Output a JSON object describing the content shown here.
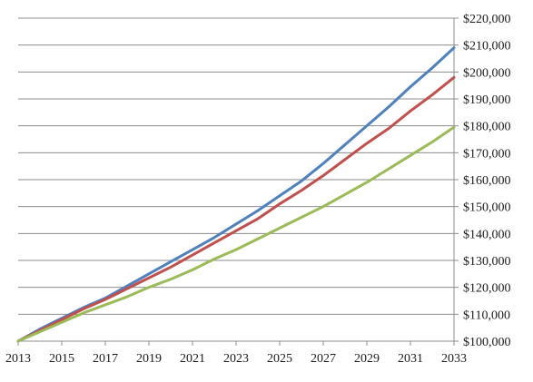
{
  "chart_data": {
    "type": "line",
    "title": "",
    "xlabel": "",
    "ylabel": "",
    "x": [
      2013,
      2014,
      2015,
      2016,
      2017,
      2018,
      2019,
      2020,
      2021,
      2022,
      2023,
      2024,
      2025,
      2026,
      2027,
      2028,
      2029,
      2030,
      2031,
      2032,
      2033
    ],
    "x_ticks": [
      "2013",
      "2015",
      "2017",
      "2019",
      "2021",
      "2023",
      "2025",
      "2027",
      "2029",
      "2031",
      "2033"
    ],
    "xlim": [
      2013,
      2033
    ],
    "ylim": [
      100000,
      220000
    ],
    "y_ticks": [
      "$100,000",
      "$110,000",
      "$120,000",
      "$130,000",
      "$140,000",
      "$150,000",
      "$160,000",
      "$170,000",
      "$180,000",
      "$190,000",
      "$200,000",
      "$210,000",
      "$220,000"
    ],
    "grid": true,
    "y_axis_position": "right",
    "legend": "none",
    "series": [
      {
        "color": "#4f81bd",
        "values": [
          100000,
          104500,
          108500,
          112500,
          116000,
          120500,
          125000,
          129500,
          134000,
          138500,
          143500,
          148500,
          154000,
          159500,
          166000,
          173000,
          180000,
          187000,
          194500,
          201500,
          209000
        ]
      },
      {
        "color": "#c0504d",
        "values": [
          100000,
          104000,
          108000,
          112000,
          115500,
          119500,
          123500,
          127500,
          132000,
          136500,
          141000,
          145500,
          151000,
          156000,
          161500,
          167500,
          173500,
          179000,
          185500,
          191500,
          198000
        ]
      },
      {
        "color": "#9bbb59",
        "values": [
          100000,
          103500,
          107000,
          110500,
          113500,
          116500,
          120000,
          123000,
          126500,
          130500,
          134000,
          138000,
          142000,
          146000,
          150000,
          154500,
          159000,
          164000,
          169000,
          174000,
          179500
        ]
      }
    ]
  }
}
